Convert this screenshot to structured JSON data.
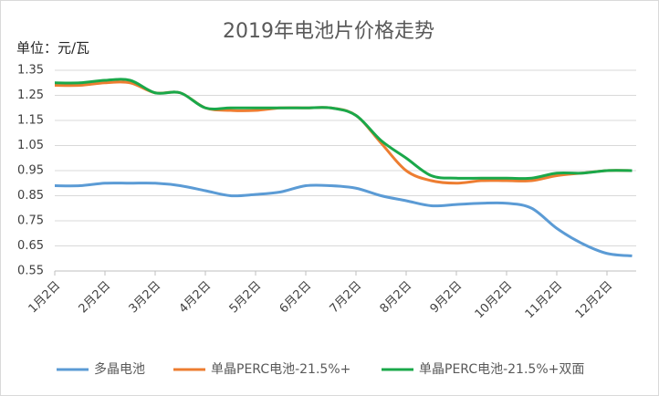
{
  "chart_data": {
    "type": "line",
    "title": "2019年电池片价格走势",
    "unit_label": "单位：元/瓦",
    "categories": [
      "1月2日",
      null,
      "2月2日",
      null,
      "3月2日",
      null,
      "4月2日",
      null,
      "5月2日",
      null,
      "6月2日",
      null,
      "7月2日",
      null,
      "8月2日",
      null,
      "9月2日",
      null,
      "10月2日",
      null,
      "11月2日",
      null,
      "12月2日",
      null
    ],
    "series": [
      {
        "name": "多晶电池",
        "color": "#5b9bd5",
        "values": [
          0.89,
          0.89,
          0.9,
          0.9,
          0.9,
          0.89,
          0.87,
          0.85,
          0.855,
          0.865,
          0.89,
          0.89,
          0.88,
          0.85,
          0.83,
          0.81,
          0.815,
          0.82,
          0.82,
          0.8,
          0.72,
          0.66,
          0.62,
          0.61
        ]
      },
      {
        "name": "单晶PERC电池-21.5%+",
        "color": "#ed7d31",
        "values": [
          1.29,
          1.29,
          1.3,
          1.3,
          1.26,
          1.26,
          1.2,
          1.19,
          1.19,
          1.2,
          1.2,
          1.2,
          1.17,
          1.06,
          0.95,
          0.91,
          0.9,
          0.91,
          0.91,
          0.91,
          0.93,
          0.94,
          0.95,
          0.95
        ]
      },
      {
        "name": "单晶PERC电池-21.5%+双面",
        "color": "#1aa84a",
        "values": [
          1.3,
          1.3,
          1.31,
          1.31,
          1.26,
          1.26,
          1.2,
          1.2,
          1.2,
          1.2,
          1.2,
          1.2,
          1.17,
          1.07,
          1.0,
          0.93,
          0.92,
          0.92,
          0.92,
          0.92,
          0.94,
          0.94,
          0.95,
          0.95
        ]
      }
    ],
    "ylim": [
      0.55,
      1.35
    ],
    "yticks": [
      0.55,
      0.65,
      0.75,
      0.85,
      0.95,
      1.05,
      1.15,
      1.25,
      1.35
    ],
    "grid": true,
    "legend": "bottom"
  }
}
